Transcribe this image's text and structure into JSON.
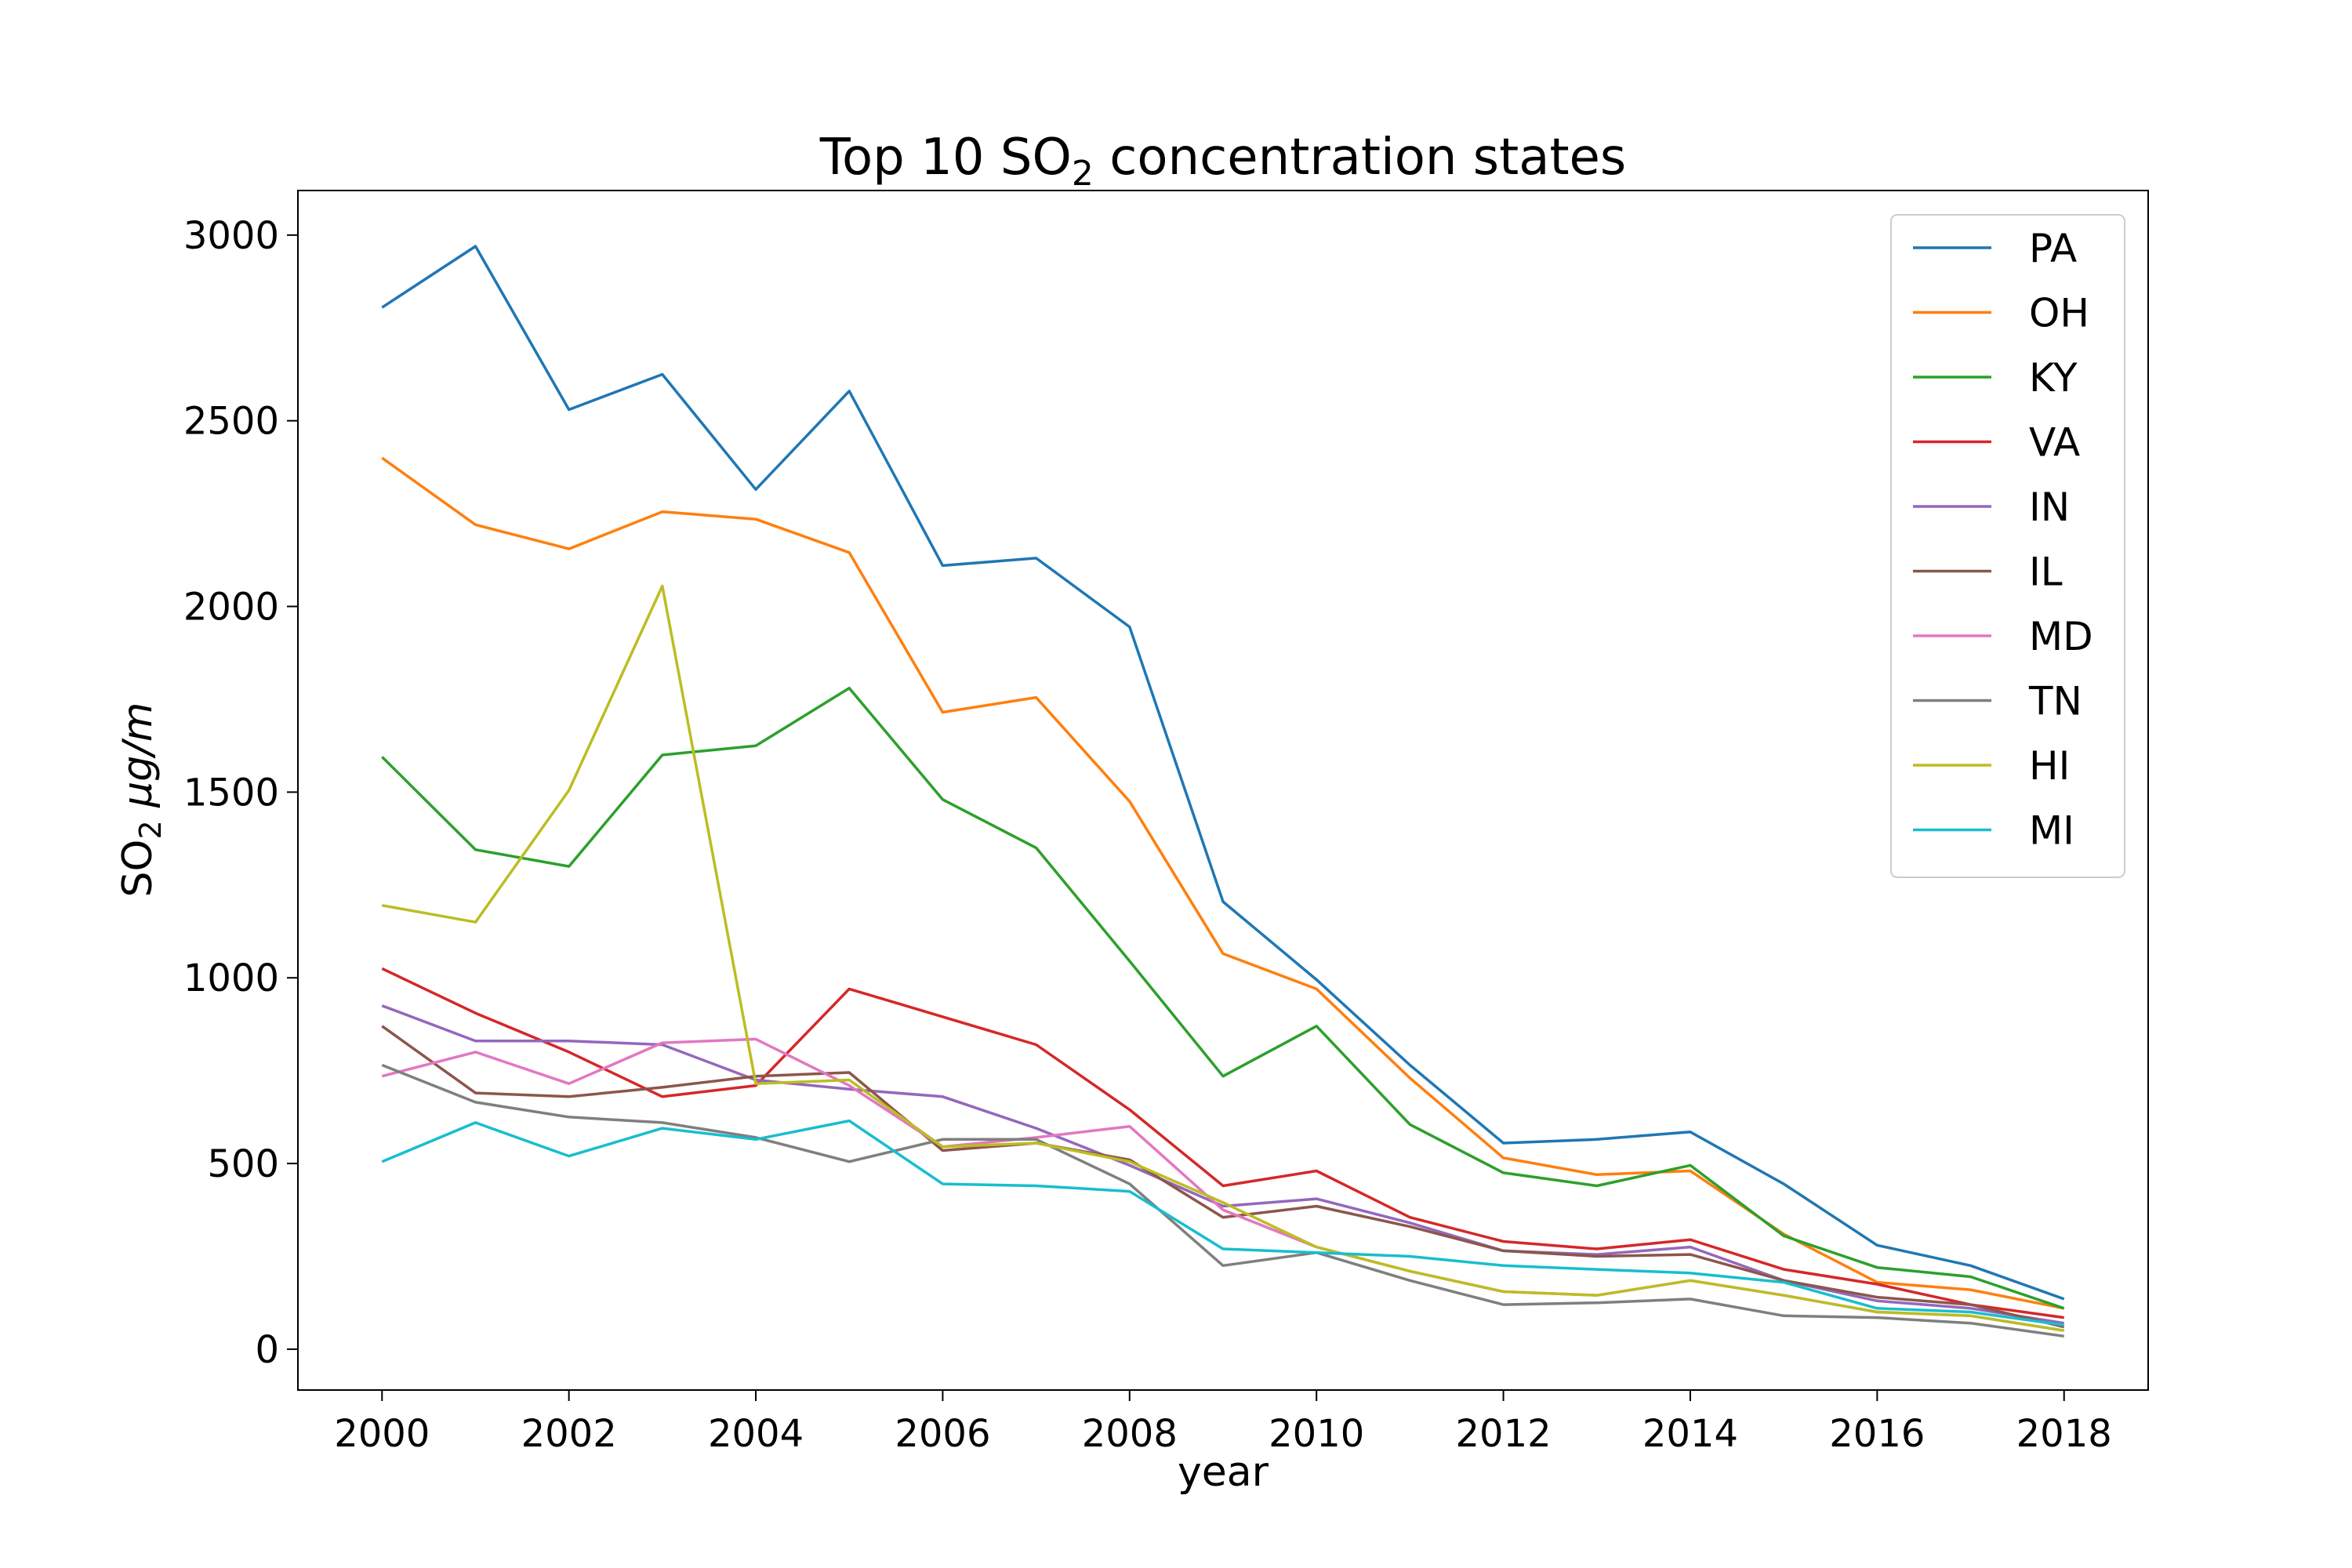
{
  "chart_data": {
    "type": "line",
    "title": "Top 10 SO",
    "title_sub": "2",
    "title_suffix": " concentration states",
    "xlabel": "year",
    "ylabel_main": "SO",
    "ylabel_sub": "2",
    "ylabel_unit": " μg/m",
    "xlim": [
      1999.1,
      2018.9
    ],
    "ylim": [
      -110,
      3120
    ],
    "xticks": [
      2000,
      2002,
      2004,
      2006,
      2008,
      2010,
      2012,
      2014,
      2016,
      2018
    ],
    "yticks": [
      0,
      500,
      1000,
      1500,
      2000,
      2500,
      3000
    ],
    "grid": false,
    "legend_position": "top-right",
    "x": [
      2000,
      2001,
      2002,
      2003,
      2004,
      2005,
      2006,
      2007,
      2008,
      2009,
      2010,
      2011,
      2012,
      2013,
      2014,
      2015,
      2016,
      2017,
      2018
    ],
    "series": [
      {
        "name": "PA",
        "color": "#1f77b4",
        "values": [
          2805,
          2970,
          2530,
          2625,
          2315,
          2580,
          2110,
          2130,
          1945,
          1205,
          995,
          765,
          555,
          565,
          585,
          445,
          280,
          225,
          135
        ]
      },
      {
        "name": "OH",
        "color": "#ff7f0e",
        "values": [
          2400,
          2220,
          2155,
          2255,
          2235,
          2145,
          1715,
          1755,
          1475,
          1065,
          970,
          730,
          515,
          470,
          480,
          310,
          180,
          160,
          110
        ]
      },
      {
        "name": "KY",
        "color": "#2ca02c",
        "values": [
          1595,
          1345,
          1300,
          1600,
          1625,
          1780,
          1480,
          1350,
          1045,
          735,
          870,
          605,
          475,
          440,
          495,
          305,
          220,
          195,
          110
        ]
      },
      {
        "name": "VA",
        "color": "#d62728",
        "values": [
          1025,
          905,
          800,
          680,
          710,
          970,
          895,
          820,
          645,
          440,
          480,
          355,
          290,
          270,
          295,
          215,
          175,
          120,
          85
        ]
      },
      {
        "name": "IN",
        "color": "#9467bd",
        "values": [
          925,
          830,
          830,
          820,
          725,
          700,
          680,
          595,
          495,
          385,
          405,
          340,
          265,
          255,
          275,
          185,
          130,
          110,
          70
        ]
      },
      {
        "name": "IL",
        "color": "#8c564b",
        "values": [
          870,
          690,
          680,
          705,
          735,
          745,
          535,
          555,
          510,
          355,
          385,
          330,
          265,
          250,
          255,
          185,
          140,
          120,
          60
        ]
      },
      {
        "name": "MD",
        "color": "#e377c2",
        "values": [
          735,
          800,
          715,
          825,
          835,
          710,
          545,
          570,
          600,
          375,
          275,
          210,
          155,
          145,
          185,
          145,
          100,
          90,
          50
        ]
      },
      {
        "name": "TN",
        "color": "#7f7f7f",
        "values": [
          765,
          665,
          625,
          610,
          570,
          505,
          565,
          565,
          445,
          225,
          260,
          185,
          120,
          125,
          135,
          90,
          85,
          70,
          35
        ]
      },
      {
        "name": "HI",
        "color": "#bcbd22",
        "values": [
          1195,
          1150,
          1505,
          2055,
          715,
          725,
          545,
          555,
          505,
          395,
          275,
          210,
          155,
          145,
          185,
          145,
          100,
          90,
          50
        ]
      },
      {
        "name": "MI",
        "color": "#17becf",
        "values": [
          505,
          610,
          520,
          595,
          565,
          615,
          445,
          440,
          425,
          270,
          260,
          250,
          225,
          215,
          205,
          180,
          110,
          100,
          65
        ]
      }
    ]
  }
}
